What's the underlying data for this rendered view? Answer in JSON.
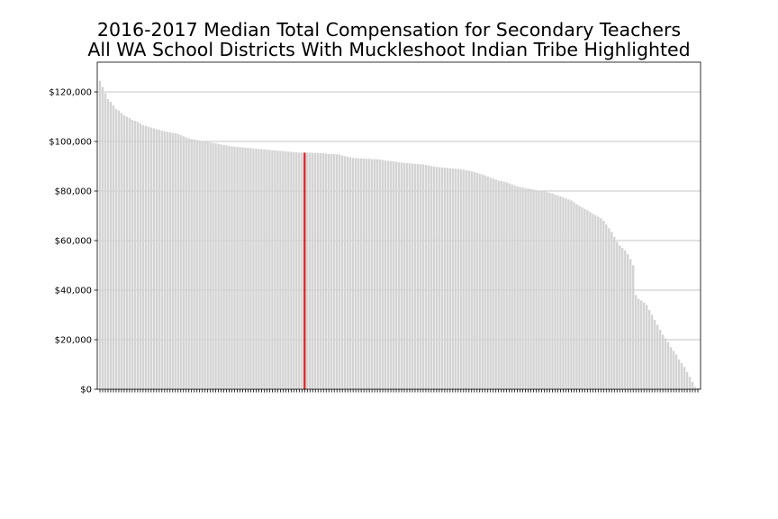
{
  "chart_data": {
    "type": "bar",
    "title_lines": [
      "2016-2017 Median Total Compensation for Secondary Teachers",
      "All WA School Districts With Muckleshoot Indian Tribe Highlighted"
    ],
    "xlabel": "",
    "ylabel": "",
    "ylim": [
      0,
      132000
    ],
    "yticks": [
      0,
      20000,
      40000,
      60000,
      80000,
      100000,
      120000
    ],
    "ytick_labels": [
      "$0",
      "$20,000",
      "$40,000",
      "$60,000",
      "$80,000",
      "$100,000",
      "$120,000"
    ],
    "grid": "horizontal",
    "bar_count": 223,
    "highlight_index": 76,
    "colors": {
      "bar": "#d3d3d3",
      "highlight": "#d62728",
      "grid": "#b0b0b0"
    },
    "values": [
      124500,
      122000,
      119500,
      117000,
      116000,
      114500,
      113000,
      112500,
      111500,
      110500,
      110000,
      109500,
      108700,
      108300,
      108000,
      107300,
      106600,
      106300,
      105900,
      105600,
      105300,
      105000,
      104700,
      104400,
      104100,
      103900,
      103700,
      103500,
      103300,
      103100,
      102600,
      102100,
      101700,
      101300,
      101000,
      100800,
      100600,
      100400,
      100200,
      100000,
      99800,
      99600,
      99400,
      99200,
      99000,
      98800,
      98600,
      98400,
      98200,
      98000,
      97900,
      97800,
      97700,
      97600,
      97500,
      97400,
      97300,
      97200,
      97100,
      97000,
      96900,
      96800,
      96700,
      96600,
      96500,
      96400,
      96300,
      96200,
      96100,
      96000,
      95900,
      95800,
      95700,
      95600,
      95500,
      95500,
      95500,
      95500,
      95500,
      95400,
      95300,
      95300,
      95300,
      95200,
      95100,
      95000,
      95000,
      94900,
      94800,
      94700,
      94300,
      94000,
      93800,
      93600,
      93400,
      93300,
      93200,
      93100,
      93100,
      93000,
      93000,
      92900,
      92900,
      92800,
      92700,
      92500,
      92300,
      92200,
      92100,
      92000,
      91800,
      91600,
      91500,
      91400,
      91300,
      91200,
      91100,
      91000,
      90900,
      90800,
      90700,
      90500,
      90300,
      90100,
      89900,
      89700,
      89600,
      89500,
      89400,
      89300,
      89200,
      89100,
      89000,
      88900,
      88800,
      88600,
      88400,
      88200,
      87900,
      87600,
      87300,
      87000,
      86700,
      86300,
      85900,
      85400,
      85000,
      84600,
      84200,
      84000,
      83800,
      83500,
      83100,
      82700,
      82300,
      81900,
      81600,
      81400,
      81200,
      81000,
      80800,
      80600,
      80400,
      80200,
      80000,
      79800,
      79600,
      79300,
      79000,
      78600,
      78200,
      77800,
      77400,
      77000,
      76600,
      76200,
      75500,
      74700,
      74000,
      73400,
      72800,
      72200,
      71500,
      70800,
      70200,
      69600,
      69000,
      68000,
      66500,
      65000,
      63500,
      61500,
      59500,
      58000,
      57000,
      56000,
      54500,
      52500,
      50000,
      38000,
      36500,
      35800,
      35000,
      34000,
      32000,
      30000,
      28000,
      26000,
      24000,
      22000,
      20500,
      19000,
      17000,
      15500,
      14000,
      12000,
      10500,
      9000,
      7000,
      5000,
      3000,
      1000,
      500
    ]
  }
}
